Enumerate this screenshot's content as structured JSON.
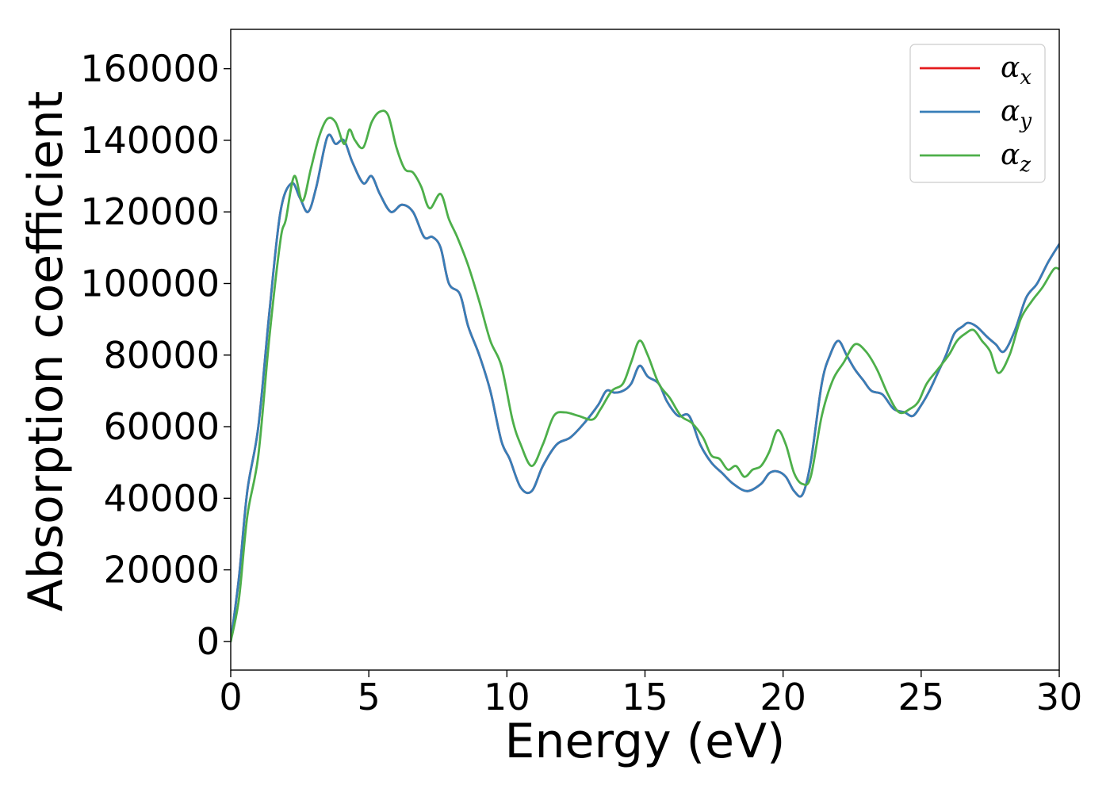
{
  "chart_data": {
    "type": "line",
    "title": "",
    "xlabel": "Energy (eV)",
    "ylabel": "Absorption coefficient",
    "xlim": [
      0,
      30
    ],
    "ylim": [
      -8000,
      171000
    ],
    "xticks": [
      0,
      5,
      10,
      15,
      20,
      25,
      30
    ],
    "yticks": [
      0,
      20000,
      40000,
      60000,
      80000,
      100000,
      120000,
      140000,
      160000
    ],
    "grid": false,
    "legend_position": "top-right",
    "series": [
      {
        "name": "αx",
        "symbol": "α",
        "subscript": "x",
        "color": "#e41a1c",
        "x": [
          0,
          0.3,
          0.6,
          1.0,
          1.4,
          1.8,
          2.2,
          2.5,
          2.8,
          3.1,
          3.5,
          3.8,
          4.1,
          4.4,
          4.8,
          5.1,
          5.4,
          5.8,
          6.2,
          6.6,
          7.0,
          7.3,
          7.6,
          7.9,
          8.3,
          8.6,
          9.0,
          9.4,
          9.8,
          10.1,
          10.5,
          10.9,
          11.3,
          11.8,
          12.3,
          12.8,
          13.3,
          13.6,
          13.9,
          14.2,
          14.5,
          14.8,
          15.1,
          15.5,
          15.8,
          16.2,
          16.6,
          17.0,
          17.4,
          17.8,
          18.2,
          18.7,
          19.2,
          19.5,
          19.8,
          20.1,
          20.4,
          20.7,
          21.0,
          21.4,
          21.7,
          22.0,
          22.3,
          22.6,
          22.9,
          23.2,
          23.6,
          24.0,
          24.4,
          24.7,
          25.0,
          25.3,
          25.6,
          25.9,
          26.2,
          26.5,
          26.7,
          27.0,
          27.4,
          27.7,
          28.0,
          28.4,
          28.8,
          29.2,
          29.6,
          30.0
        ],
        "values": [
          0,
          18000,
          42000,
          60000,
          92000,
          120000,
          128000,
          124000,
          120000,
          127000,
          141000,
          139000,
          140000,
          134000,
          128000,
          130000,
          125000,
          120000,
          122000,
          120000,
          113000,
          113000,
          110000,
          100000,
          97000,
          88000,
          80000,
          70000,
          56000,
          51000,
          43000,
          42000,
          49000,
          55000,
          57000,
          61000,
          66000,
          70000,
          69500,
          70000,
          72000,
          77000,
          74000,
          72000,
          67000,
          63000,
          63000,
          55000,
          50000,
          47000,
          44000,
          42000,
          44000,
          47000,
          47500,
          46000,
          42000,
          41000,
          50000,
          72000,
          80000,
          84000,
          80000,
          76000,
          73000,
          70000,
          69000,
          65000,
          64000,
          63000,
          66000,
          70000,
          75000,
          80000,
          86000,
          88000,
          89000,
          88000,
          85000,
          83000,
          81000,
          87000,
          96000,
          100000,
          106000,
          111000
        ]
      },
      {
        "name": "αy",
        "symbol": "α",
        "subscript": "y",
        "color": "#377eb8",
        "x": [
          0,
          0.3,
          0.6,
          1.0,
          1.4,
          1.8,
          2.2,
          2.5,
          2.8,
          3.1,
          3.5,
          3.8,
          4.1,
          4.4,
          4.8,
          5.1,
          5.4,
          5.8,
          6.2,
          6.6,
          7.0,
          7.3,
          7.6,
          7.9,
          8.3,
          8.6,
          9.0,
          9.4,
          9.8,
          10.1,
          10.5,
          10.9,
          11.3,
          11.8,
          12.3,
          12.8,
          13.3,
          13.6,
          13.9,
          14.2,
          14.5,
          14.8,
          15.1,
          15.5,
          15.8,
          16.2,
          16.6,
          17.0,
          17.4,
          17.8,
          18.2,
          18.7,
          19.2,
          19.5,
          19.8,
          20.1,
          20.4,
          20.7,
          21.0,
          21.4,
          21.7,
          22.0,
          22.3,
          22.6,
          22.9,
          23.2,
          23.6,
          24.0,
          24.4,
          24.7,
          25.0,
          25.3,
          25.6,
          25.9,
          26.2,
          26.5,
          26.7,
          27.0,
          27.4,
          27.7,
          28.0,
          28.4,
          28.8,
          29.2,
          29.6,
          30.0
        ],
        "values": [
          0,
          18000,
          42000,
          60000,
          92000,
          120000,
          128000,
          124000,
          120000,
          127000,
          141000,
          139000,
          140000,
          134000,
          128000,
          130000,
          125000,
          120000,
          122000,
          120000,
          113000,
          113000,
          110000,
          100000,
          97000,
          88000,
          80000,
          70000,
          56000,
          51000,
          43000,
          42000,
          49000,
          55000,
          57000,
          61000,
          66000,
          70000,
          69500,
          70000,
          72000,
          77000,
          74000,
          72000,
          67000,
          63000,
          63000,
          55000,
          50000,
          47000,
          44000,
          42000,
          44000,
          47000,
          47500,
          46000,
          42000,
          41000,
          50000,
          72000,
          80000,
          84000,
          80000,
          76000,
          73000,
          70000,
          69000,
          65000,
          64000,
          63000,
          66000,
          70000,
          75000,
          80000,
          86000,
          88000,
          89000,
          88000,
          85000,
          83000,
          81000,
          87000,
          96000,
          100000,
          106000,
          111000
        ]
      },
      {
        "name": "αz",
        "symbol": "α",
        "subscript": "z",
        "color": "#4daf4a",
        "x": [
          0,
          0.3,
          0.6,
          1.0,
          1.4,
          1.8,
          2.0,
          2.3,
          2.6,
          2.9,
          3.2,
          3.5,
          3.8,
          4.1,
          4.3,
          4.5,
          4.8,
          5.1,
          5.4,
          5.7,
          6.0,
          6.3,
          6.6,
          6.9,
          7.2,
          7.6,
          7.9,
          8.2,
          8.6,
          9.0,
          9.4,
          9.8,
          10.2,
          10.5,
          10.9,
          11.3,
          11.7,
          12.1,
          12.6,
          13.1,
          13.4,
          13.8,
          14.2,
          14.5,
          14.8,
          15.1,
          15.5,
          15.9,
          16.3,
          16.7,
          17.1,
          17.4,
          17.7,
          18.0,
          18.3,
          18.6,
          18.9,
          19.2,
          19.5,
          19.8,
          20.1,
          20.4,
          20.7,
          21.0,
          21.4,
          21.8,
          22.2,
          22.6,
          23.0,
          23.4,
          23.8,
          24.2,
          24.6,
          24.9,
          25.2,
          25.6,
          26.0,
          26.3,
          26.6,
          26.9,
          27.2,
          27.5,
          27.8,
          28.2,
          28.6,
          29.0,
          29.4,
          29.8,
          30.0
        ],
        "values": [
          0,
          12000,
          35000,
          52000,
          85000,
          112000,
          118000,
          130000,
          123000,
          132000,
          141000,
          146000,
          145000,
          139000,
          143000,
          140000,
          138000,
          145000,
          148000,
          147000,
          138000,
          132000,
          131000,
          127000,
          121000,
          125000,
          118000,
          113000,
          105000,
          95000,
          84000,
          77000,
          62000,
          55000,
          49000,
          55000,
          63000,
          64000,
          63000,
          62000,
          65000,
          70000,
          72000,
          78000,
          84000,
          80000,
          72000,
          68000,
          63000,
          61000,
          57000,
          52000,
          51000,
          48000,
          49000,
          46000,
          48000,
          49000,
          53000,
          59000,
          55000,
          47000,
          44000,
          46000,
          63000,
          73000,
          78000,
          83000,
          81000,
          76000,
          69000,
          64000,
          65000,
          67000,
          72000,
          76000,
          80000,
          84000,
          86000,
          87000,
          84000,
          81000,
          75000,
          80000,
          90000,
          95000,
          99000,
          104000,
          104000
        ]
      }
    ]
  }
}
